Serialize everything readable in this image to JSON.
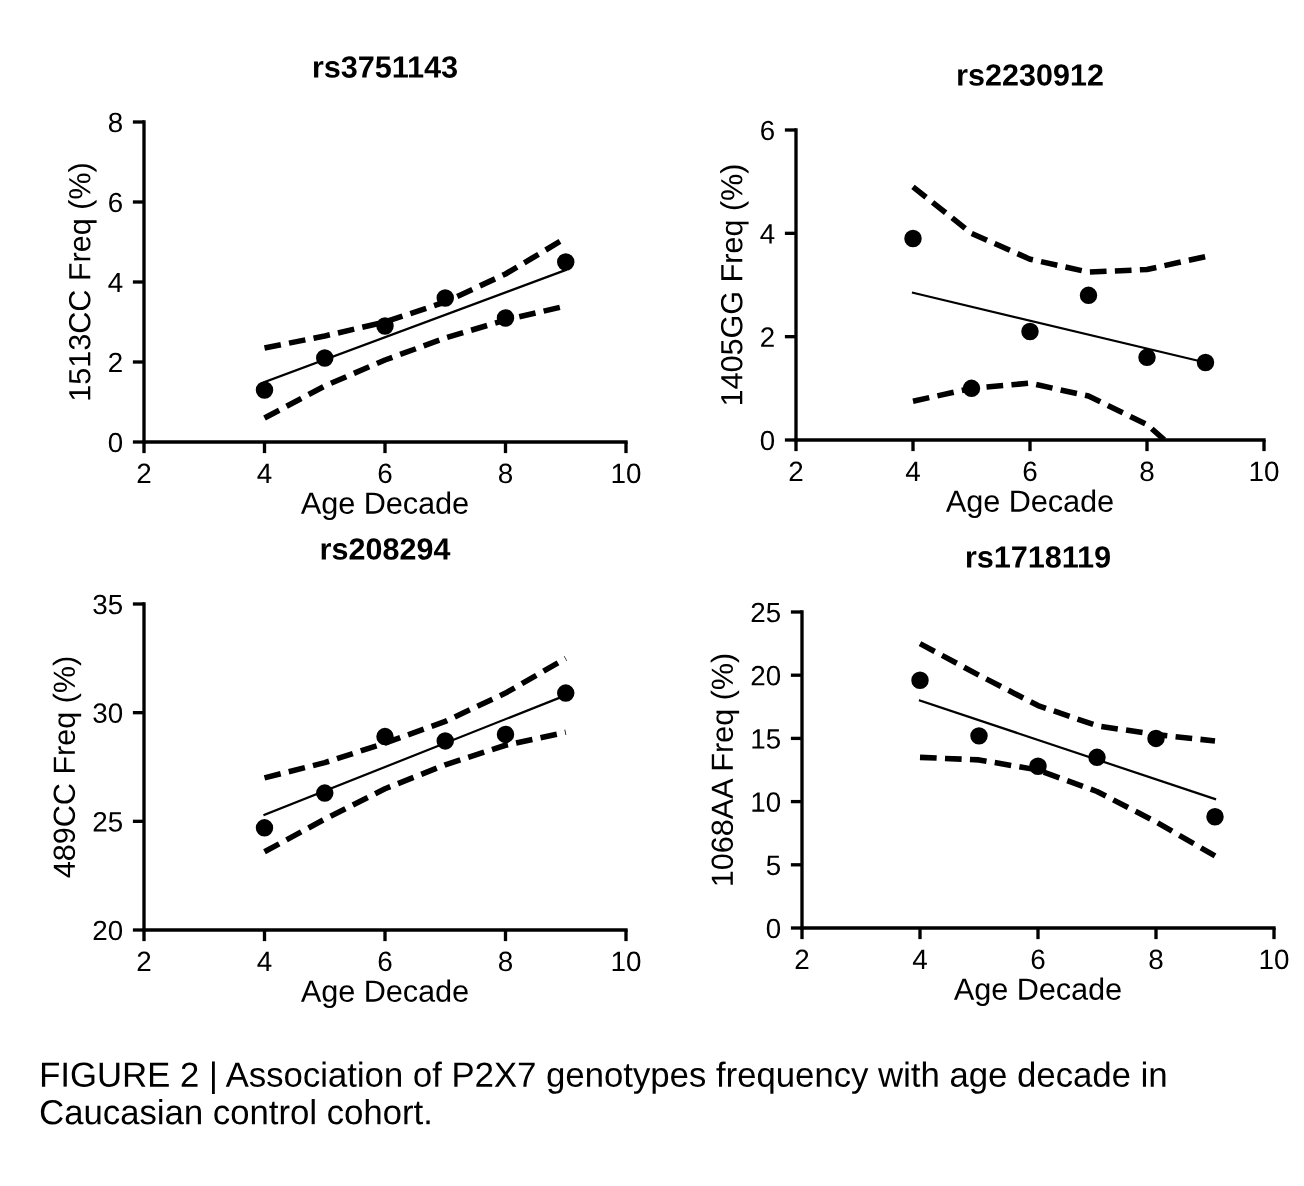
{
  "chart_data": [
    {
      "type": "scatter",
      "title": "rs3751143",
      "xlabel": "Age Decade",
      "ylabel": "1513CC Freq (%)",
      "xlim": [
        2,
        10
      ],
      "xticks": [
        2,
        4,
        6,
        8,
        10
      ],
      "ylim": [
        0,
        8
      ],
      "yticks": [
        0,
        2,
        4,
        6,
        8
      ],
      "grid": false,
      "series": [
        {
          "type": "scatter",
          "color": "#000000",
          "marker": "circle",
          "x": [
            4,
            5,
            6,
            7,
            8,
            9
          ],
          "values": [
            1.3,
            2.1,
            2.9,
            3.6,
            3.1,
            4.5
          ]
        },
        {
          "type": "line",
          "color": "#000000",
          "line_style": "solid",
          "marker": "none",
          "x": [
            4,
            9
          ],
          "values": [
            1.5,
            4.3
          ]
        },
        {
          "type": "line",
          "color": "#000000",
          "line_style": "dashed",
          "marker": "none",
          "x": [
            4,
            5,
            6,
            7,
            8,
            9
          ],
          "values": [
            2.35,
            2.65,
            3.0,
            3.5,
            4.2,
            5.1
          ]
        },
        {
          "type": "line",
          "color": "#000000",
          "line_style": "dashed",
          "marker": "none",
          "x": [
            4,
            5,
            6,
            7,
            8,
            9
          ],
          "values": [
            0.6,
            1.4,
            2.05,
            2.6,
            3.05,
            3.4
          ]
        }
      ]
    },
    {
      "type": "scatter",
      "title": "rs2230912",
      "xlabel": "Age Decade",
      "ylabel": "1405GG Freq (%)",
      "xlim": [
        2,
        10
      ],
      "xticks": [
        2,
        4,
        6,
        8,
        10
      ],
      "ylim": [
        0,
        6
      ],
      "yticks": [
        0,
        2,
        4,
        6
      ],
      "grid": false,
      "series": [
        {
          "type": "scatter",
          "color": "#000000",
          "marker": "circle",
          "x": [
            4,
            5,
            6,
            7,
            8,
            9
          ],
          "values": [
            3.9,
            1.0,
            2.1,
            2.8,
            1.6,
            1.5
          ]
        },
        {
          "type": "line",
          "color": "#000000",
          "line_style": "solid",
          "marker": "none",
          "x": [
            4,
            9
          ],
          "values": [
            2.85,
            1.5
          ]
        },
        {
          "type": "line",
          "color": "#000000",
          "line_style": "dashed",
          "marker": "none",
          "x": [
            4,
            5,
            6,
            7,
            8,
            9
          ],
          "values": [
            4.9,
            4.0,
            3.5,
            3.25,
            3.3,
            3.55
          ]
        },
        {
          "type": "line",
          "color": "#000000",
          "line_style": "dashed",
          "marker": "none",
          "x": [
            4,
            5,
            6,
            7,
            8,
            8.3
          ],
          "values": [
            0.75,
            1.0,
            1.1,
            0.85,
            0.3,
            0.0
          ]
        }
      ]
    },
    {
      "type": "scatter",
      "title": "rs208294",
      "xlabel": "Age Decade",
      "ylabel": "489CC Freq (%)",
      "xlim": [
        2,
        10
      ],
      "xticks": [
        2,
        4,
        6,
        8,
        10
      ],
      "ylim": [
        20,
        35
      ],
      "yticks": [
        20,
        25,
        30,
        35
      ],
      "grid": false,
      "series": [
        {
          "type": "scatter",
          "color": "#000000",
          "marker": "circle",
          "x": [
            4,
            5,
            6,
            7,
            8,
            9
          ],
          "values": [
            24.7,
            26.3,
            28.9,
            28.7,
            29.0,
            30.9
          ]
        },
        {
          "type": "line",
          "color": "#000000",
          "line_style": "solid",
          "marker": "none",
          "x": [
            4,
            9
          ],
          "values": [
            25.3,
            30.8
          ]
        },
        {
          "type": "line",
          "color": "#000000",
          "line_style": "dashed",
          "marker": "none",
          "x": [
            4,
            5,
            6,
            7,
            8,
            9
          ],
          "values": [
            27.0,
            27.7,
            28.6,
            29.6,
            30.9,
            32.5
          ]
        },
        {
          "type": "line",
          "color": "#000000",
          "line_style": "dashed",
          "marker": "none",
          "x": [
            4,
            5,
            6,
            7,
            8,
            9
          ],
          "values": [
            23.6,
            25.1,
            26.5,
            27.6,
            28.5,
            29.1
          ]
        }
      ]
    },
    {
      "type": "scatter",
      "title": "rs1718119",
      "xlabel": "Age Decade",
      "ylabel": "1068AA Freq (%)",
      "xlim": [
        2,
        10
      ],
      "xticks": [
        2,
        4,
        6,
        8,
        10
      ],
      "ylim": [
        0,
        25
      ],
      "yticks": [
        0,
        5,
        10,
        15,
        20,
        25
      ],
      "grid": false,
      "annotations": [
        "FIGURE 2 | Association of P2X7 genotypes frequency with age decade in Caucasian control cohort."
      ],
      "series": [
        {
          "type": "scatter",
          "color": "#000000",
          "marker": "circle",
          "x": [
            4,
            5,
            6,
            7,
            8,
            9
          ],
          "values": [
            19.6,
            15.2,
            12.8,
            13.5,
            15.0,
            8.8
          ]
        },
        {
          "type": "line",
          "color": "#000000",
          "line_style": "solid",
          "marker": "none",
          "x": [
            4,
            9
          ],
          "values": [
            18.0,
            10.2
          ]
        },
        {
          "type": "line",
          "color": "#000000",
          "line_style": "dashed",
          "marker": "none",
          "x": [
            4,
            5,
            6,
            7,
            8,
            9
          ],
          "values": [
            22.5,
            20.0,
            17.6,
            16.0,
            15.3,
            14.8
          ]
        },
        {
          "type": "line",
          "color": "#000000",
          "line_style": "dashed",
          "marker": "none",
          "x": [
            4,
            5,
            6,
            7,
            8,
            9
          ],
          "values": [
            13.5,
            13.3,
            12.5,
            10.8,
            8.4,
            5.7
          ]
        }
      ]
    }
  ]
}
